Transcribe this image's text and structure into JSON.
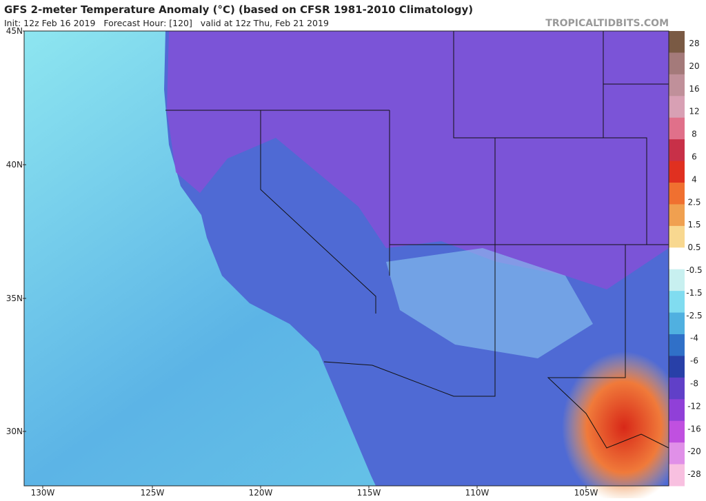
{
  "header": {
    "title": "GFS 2-meter Temperature Anomaly (°C) (based on CFSR 1981-2010 Climatology)",
    "subtitle": "Init: 12z Feb 16 2019   Forecast Hour: [120]   valid at 12z Thu, Feb 21 2019",
    "source": "TROPICALTIDBITS.COM"
  },
  "map": {
    "lat_labels": [
      "45N",
      "40N",
      "35N",
      "30N"
    ],
    "lon_labels": [
      "130W",
      "125W",
      "120W",
      "115W",
      "110W",
      "105W"
    ]
  },
  "colorbar": {
    "labels": [
      "28",
      "20",
      "16",
      "12",
      "8",
      "6",
      "4",
      "2.5",
      "1.5",
      "0.5",
      "-0.5",
      "-1.5",
      "-2.5",
      "-4",
      "-6",
      "-8",
      "-12",
      "-16",
      "-20",
      "-28"
    ],
    "colors": [
      "#7a5a44",
      "#a47a7a",
      "#c0909a",
      "#d8a0b4",
      "#e0708a",
      "#c83048",
      "#e03020",
      "#f07030",
      "#f0a050",
      "#f8d890",
      "#ffffff",
      "#c8f0f0",
      "#80dcf0",
      "#50b0e0",
      "#3070c8",
      "#2840a8",
      "#6040c8",
      "#9040d8",
      "#c050e0",
      "#e090e8",
      "#f8c0e0"
    ]
  }
}
